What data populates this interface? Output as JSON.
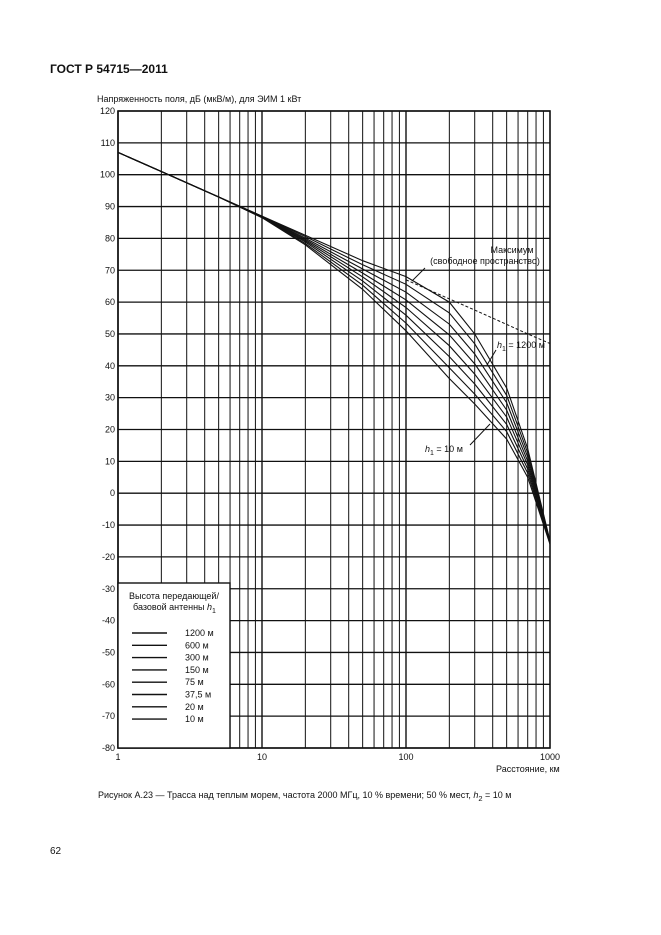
{
  "header": "ГОСТ Р 54715—2011",
  "page_number": "62",
  "caption": {
    "text": "Рисунок А.23 — Трасса над теплым морем, частота 2000 МГц, 10 % времени; 50 % мест, ",
    "var": "h",
    "sub": "2",
    "tail": " = 10 м"
  },
  "chart_data": {
    "type": "line",
    "title": "",
    "ylabel": "Напряженность поля, дБ (мкВ/м), для ЭИМ 1 кВт",
    "xlabel": "Расстояние, км",
    "x_scale": "log",
    "xlim": [
      1,
      1000
    ],
    "ylim": [
      -80,
      120
    ],
    "grid": true,
    "x_ticks": [
      "1",
      "10",
      "100",
      "1000"
    ],
    "y_ticks": [
      "120",
      "110",
      "100",
      "90",
      "80",
      "70",
      "60",
      "50",
      "40",
      "30",
      "20",
      "10",
      "0",
      "-10",
      "-20",
      "-30",
      "-40",
      "-50",
      "-60",
      "-70",
      "-80"
    ],
    "legend": {
      "title": "Высота передающей/ базовой антенны h1",
      "title_line1": "Высота передающей/",
      "title_line2": "базовой антенны ",
      "title_var": "h",
      "title_sub": "1",
      "placement": "bottom-left"
    },
    "x": [
      1,
      2,
      5,
      10,
      20,
      50,
      100,
      200,
      300,
      500,
      700,
      1000
    ],
    "free_space": {
      "label_line1": "Максимум",
      "label_line2": "(свободное пространство)",
      "style": "dashed",
      "values": [
        107,
        101,
        93,
        87,
        81,
        73,
        67,
        61,
        57.5,
        53,
        50,
        47
      ]
    },
    "series": [
      {
        "name": "1200 м",
        "values": [
          107,
          101,
          93,
          87,
          81,
          73,
          68,
          60,
          50,
          33,
          14,
          -15
        ]
      },
      {
        "name": "600 м",
        "values": [
          107,
          101,
          93,
          86.9,
          80.6,
          71.7,
          65.6,
          56.6,
          46.9,
          30.7,
          12.7,
          -15.1
        ]
      },
      {
        "name": "300 м",
        "values": [
          107,
          101,
          93,
          86.9,
          80.1,
          70.4,
          63.1,
          53.1,
          43.7,
          28.4,
          11.4,
          -15.3
        ]
      },
      {
        "name": "150 м",
        "values": [
          107,
          101,
          93,
          86.8,
          79.7,
          69.1,
          60.7,
          49.7,
          40.6,
          26.1,
          10.1,
          -15.4
        ]
      },
      {
        "name": "75 м",
        "values": [
          107,
          101,
          93,
          86.7,
          79.3,
          67.9,
          58.3,
          46.3,
          37.4,
          23.9,
          8.9,
          -15.6
        ]
      },
      {
        "name": "37,5 м",
        "values": [
          107,
          101,
          93,
          86.6,
          78.9,
          66.6,
          55.9,
          42.9,
          34.3,
          21.6,
          7.6,
          -15.7
        ]
      },
      {
        "name": "20 м",
        "values": [
          107,
          101,
          93,
          86.6,
          78.4,
          65.3,
          53.4,
          39.4,
          31.1,
          19.3,
          6.3,
          -15.9
        ]
      },
      {
        "name": "10 м",
        "values": [
          107,
          101,
          93,
          86.5,
          78,
          64,
          51,
          36,
          28,
          17,
          5,
          -16
        ]
      }
    ],
    "annotations": [
      {
        "var": "h",
        "sub": "1",
        "text": " = 1200 м"
      },
      {
        "var": "h",
        "sub": "1",
        "text": " = 10 м"
      }
    ]
  }
}
